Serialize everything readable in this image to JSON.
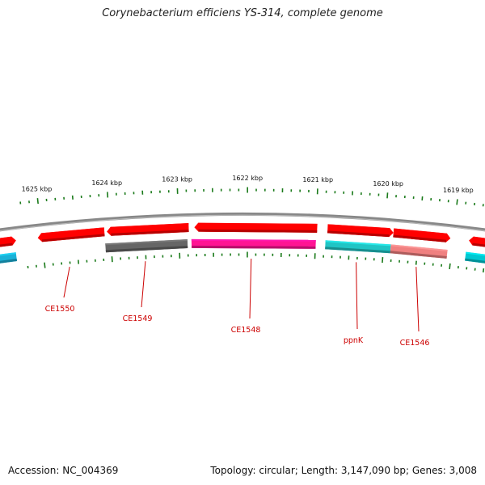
{
  "title": "Corynebacterium efficiens YS-314, complete genome",
  "footer": {
    "accession": "Accession: NC_004369",
    "summary": "Topology: circular; Length: 3,147,090 bp; Genes: 3,008"
  },
  "ticks": [
    {
      "label": "1625 kbp"
    },
    {
      "label": "1624 kbp"
    },
    {
      "label": "1623 kbp"
    },
    {
      "label": "1622 kbp"
    },
    {
      "label": "1621 kbp"
    },
    {
      "label": "1620 kbp"
    },
    {
      "label": "1619 kbp"
    }
  ],
  "genes": [
    {
      "label": "",
      "color": "#ff0000",
      "lane": "outer",
      "direction": "right"
    },
    {
      "label": "CE1550",
      "color": "#ff0000",
      "lane": "outer",
      "direction": "left"
    },
    {
      "label": "",
      "color": "#ff0000",
      "lane": "outer",
      "direction": "left"
    },
    {
      "label": "CE1549",
      "color": "#666666",
      "lane": "inner",
      "direction": "none"
    },
    {
      "label": "",
      "color": "#ff0000",
      "lane": "outer",
      "direction": "left"
    },
    {
      "label": "CE1548",
      "color": "#ff1493",
      "lane": "inner",
      "direction": "none"
    },
    {
      "label": "",
      "color": "#ff0000",
      "lane": "outer",
      "direction": "right"
    },
    {
      "label": "ppnK",
      "color": "#20c5c5",
      "lane": "inner",
      "direction": "none"
    },
    {
      "label": "",
      "color": "#ff0000",
      "lane": "outer",
      "direction": "right"
    },
    {
      "label": "CE1546",
      "color": "#f08080",
      "lane": "inner",
      "direction": "none"
    },
    {
      "label": "",
      "color": "#ff0000",
      "lane": "outer",
      "direction": "left"
    },
    {
      "label": "",
      "color": "#1ab2d8",
      "lane": "inner",
      "direction": "none"
    },
    {
      "label": "",
      "color": "#00c8d2",
      "lane": "inner",
      "direction": "none"
    }
  ],
  "colors": {
    "backbone": "#888888",
    "tick": "#1a7a1a",
    "label": "#cc0000"
  }
}
